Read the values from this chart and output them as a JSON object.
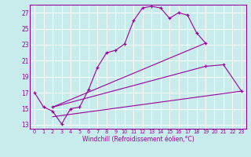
{
  "xlabel": "Windchill (Refroidissement éolien,°C)",
  "bg_color": "#c8ecec",
  "line_color": "#990099",
  "grid_color": "#ffffff",
  "xlim": [
    -0.5,
    23.5
  ],
  "ylim": [
    12.5,
    28.0
  ],
  "yticks": [
    13,
    15,
    17,
    19,
    21,
    23,
    25,
    27
  ],
  "xticks": [
    0,
    1,
    2,
    3,
    4,
    5,
    6,
    7,
    8,
    9,
    10,
    11,
    12,
    13,
    14,
    15,
    16,
    17,
    18,
    19,
    20,
    21,
    22,
    23
  ],
  "lines": [
    {
      "x": [
        0,
        1,
        2,
        3,
        4,
        5,
        6,
        7,
        8,
        9,
        10,
        11,
        12,
        13,
        14,
        15,
        16,
        17,
        18,
        19
      ],
      "y": [
        17.0,
        15.2,
        14.7,
        13.1,
        15.0,
        15.2,
        17.4,
        20.2,
        22.0,
        22.3,
        23.1,
        26.0,
        27.6,
        27.8,
        27.6,
        26.3,
        27.0,
        26.7,
        24.5,
        23.2
      ],
      "has_marker": true
    },
    {
      "x": [
        2,
        19
      ],
      "y": [
        15.2,
        23.2
      ],
      "has_marker": false
    },
    {
      "x": [
        2,
        19,
        21,
        23
      ],
      "y": [
        15.2,
        20.3,
        20.5,
        17.2
      ],
      "has_marker": true
    },
    {
      "x": [
        2,
        23
      ],
      "y": [
        14.0,
        17.2
      ],
      "has_marker": false
    }
  ]
}
